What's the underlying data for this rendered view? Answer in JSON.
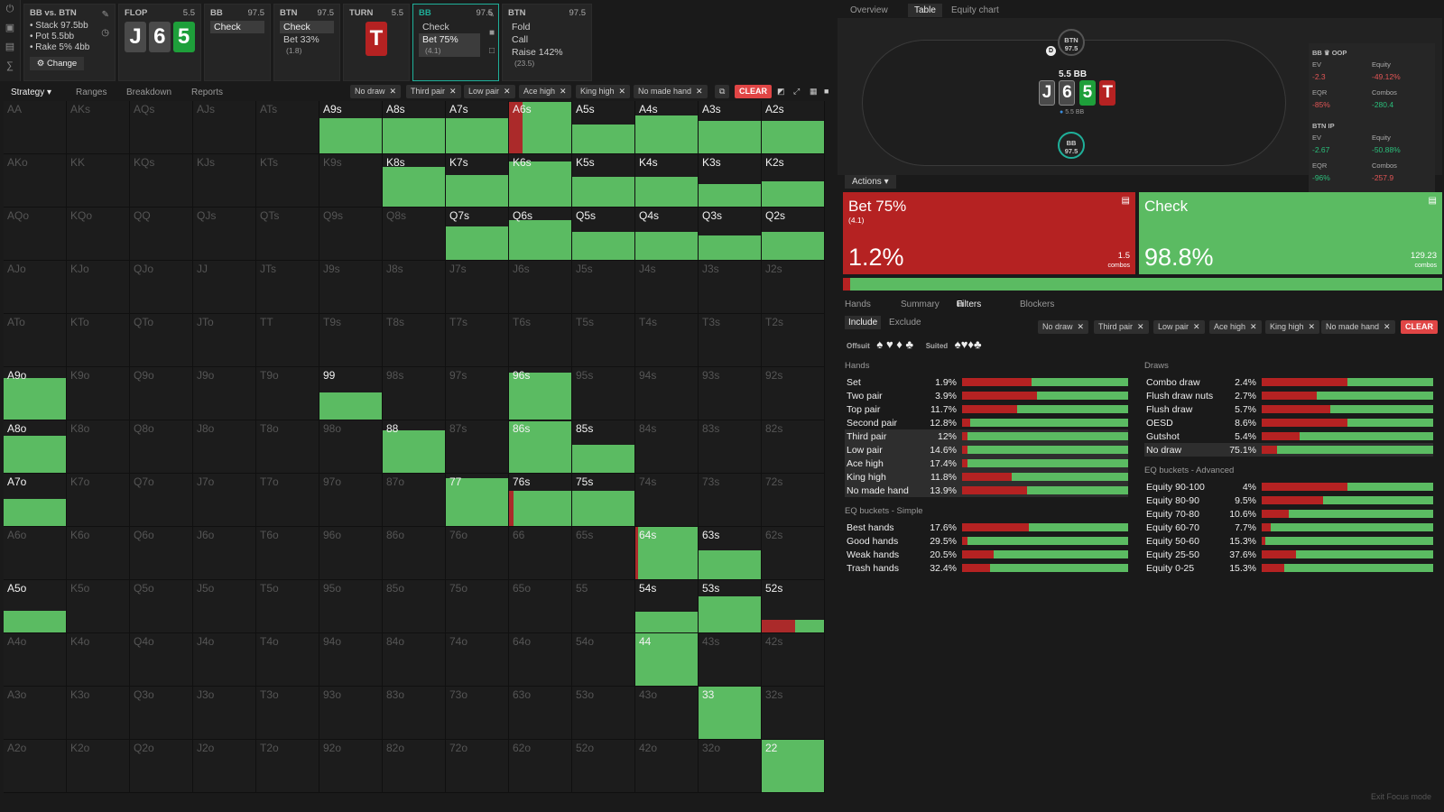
{
  "header": {
    "matchup": "BB vs. BTN",
    "stack": "Stack 97.5bb",
    "pot": "Pot 5.5bb",
    "rake": "Rake 5% 4bb",
    "change_label": "Change"
  },
  "nav": [
    {
      "title": "FLOP",
      "value": "5.5",
      "cards": [
        "J",
        "6",
        "5"
      ]
    },
    {
      "title": "BB",
      "value": "97.5",
      "actions": [
        "Check"
      ]
    },
    {
      "title": "BTN",
      "value": "97.5",
      "actions": [
        "Check",
        "Bet 33%"
      ],
      "sizes": [
        "",
        "(1.8)"
      ]
    },
    {
      "title": "TURN",
      "value": "5.5",
      "cards": [
        "T"
      ]
    },
    {
      "title": "BB",
      "value": "97.5",
      "actions": [
        "Check",
        "Bet 75%"
      ],
      "sizes": [
        "",
        "(4.1)"
      ]
    },
    {
      "title": "BTN",
      "value": "97.5",
      "actions": [
        "Fold",
        "Call",
        "Raise 142%"
      ],
      "sizes": [
        "",
        "",
        "(23.5)"
      ]
    }
  ],
  "tabs": [
    "Strategy",
    "Ranges",
    "Breakdown",
    "Reports"
  ],
  "filter_chips": [
    "No draw",
    "Third pair",
    "Low pair",
    "Ace high",
    "King high",
    "No made hand"
  ],
  "clear_label": "CLEAR",
  "grid": [
    [
      "AA",
      "AKs",
      "AQs",
      "AJs",
      "ATs",
      "A9s",
      "A8s",
      "A7s",
      "A6s",
      "A5s",
      "A4s",
      "A3s",
      "A2s"
    ],
    [
      "AKo",
      "KK",
      "KQs",
      "KJs",
      "KTs",
      "K9s",
      "K8s",
      "K7s",
      "K6s",
      "K5s",
      "K4s",
      "K3s",
      "K2s"
    ],
    [
      "AQo",
      "KQo",
      "QQ",
      "QJs",
      "QTs",
      "Q9s",
      "Q8s",
      "Q7s",
      "Q6s",
      "Q5s",
      "Q4s",
      "Q3s",
      "Q2s"
    ],
    [
      "AJo",
      "KJo",
      "QJo",
      "JJ",
      "JTs",
      "J9s",
      "J8s",
      "J7s",
      "J6s",
      "J5s",
      "J4s",
      "J3s",
      "J2s"
    ],
    [
      "ATo",
      "KTo",
      "QTo",
      "JTo",
      "TT",
      "T9s",
      "T8s",
      "T7s",
      "T6s",
      "T5s",
      "T4s",
      "T3s",
      "T2s"
    ],
    [
      "A9o",
      "K9o",
      "Q9o",
      "J9o",
      "T9o",
      "99",
      "98s",
      "97s",
      "96s",
      "95s",
      "94s",
      "93s",
      "92s"
    ],
    [
      "A8o",
      "K8o",
      "Q8o",
      "J8o",
      "T8o",
      "98o",
      "88",
      "87s",
      "86s",
      "85s",
      "84s",
      "83s",
      "82s"
    ],
    [
      "A7o",
      "K7o",
      "Q7o",
      "J7o",
      "T7o",
      "97o",
      "87o",
      "77",
      "76s",
      "75s",
      "74s",
      "73s",
      "72s"
    ],
    [
      "A6o",
      "K6o",
      "Q6o",
      "J6o",
      "T6o",
      "96o",
      "86o",
      "76o",
      "66",
      "65s",
      "64s",
      "63s",
      "62s"
    ],
    [
      "A5o",
      "K5o",
      "Q5o",
      "J5o",
      "T5o",
      "95o",
      "85o",
      "75o",
      "65o",
      "55",
      "54s",
      "53s",
      "52s"
    ],
    [
      "A4o",
      "K4o",
      "Q4o",
      "J4o",
      "T4o",
      "94o",
      "84o",
      "74o",
      "64o",
      "54o",
      "44",
      "43s",
      "42s"
    ],
    [
      "A3o",
      "K3o",
      "Q3o",
      "J3o",
      "T3o",
      "93o",
      "83o",
      "73o",
      "63o",
      "53o",
      "43o",
      "33",
      "32s"
    ],
    [
      "A2o",
      "K2o",
      "Q2o",
      "J2o",
      "T2o",
      "92o",
      "82o",
      "72o",
      "62o",
      "52o",
      "42o",
      "32o",
      "22"
    ]
  ],
  "grid_freq": {
    "A9s": {
      "range": 0.68,
      "bet": 0.0
    },
    "A8s": {
      "range": 0.68,
      "bet": 0.0
    },
    "A7s": {
      "range": 0.68,
      "bet": 0.0
    },
    "A6s": {
      "range": 0.98,
      "bet": 0.22
    },
    "A5s": {
      "range": 0.55,
      "bet": 0.0
    },
    "A4s": {
      "range": 0.72,
      "bet": 0.0
    },
    "A3s": {
      "range": 0.62,
      "bet": 0.0
    },
    "A2s": {
      "range": 0.62,
      "bet": 0.0
    },
    "K8s": {
      "range": 0.76,
      "bet": 0.0
    },
    "K7s": {
      "range": 0.61,
      "bet": 0.0
    },
    "K6s": {
      "range": 0.87,
      "bet": 0.0
    },
    "K5s": {
      "range": 0.57,
      "bet": 0.0
    },
    "K4s": {
      "range": 0.57,
      "bet": 0.0
    },
    "K3s": {
      "range": 0.43,
      "bet": 0.0
    },
    "K2s": {
      "range": 0.48,
      "bet": 0.0
    },
    "Q7s": {
      "range": 0.64,
      "bet": 0.0
    },
    "Q6s": {
      "range": 0.76,
      "bet": 0.0
    },
    "Q5s": {
      "range": 0.53,
      "bet": 0.0
    },
    "Q4s": {
      "range": 0.53,
      "bet": 0.0
    },
    "Q3s": {
      "range": 0.47,
      "bet": 0.0
    },
    "Q2s": {
      "range": 0.53,
      "bet": 0.0
    },
    "A9o": {
      "range": 0.8,
      "bet": 0.0
    },
    "99": {
      "range": 0.52,
      "bet": 0.0
    },
    "96s": {
      "range": 0.9,
      "bet": 0.0
    },
    "A8o": {
      "range": 0.71,
      "bet": 0.0
    },
    "88": {
      "range": 0.81,
      "bet": 0.0
    },
    "86s": {
      "range": 0.98,
      "bet": 0.0
    },
    "85s": {
      "range": 0.53,
      "bet": 0.0
    },
    "A7o": {
      "range": 0.52,
      "bet": 0.0
    },
    "77": {
      "range": 0.92,
      "bet": 0.0
    },
    "76s": {
      "range": 0.67,
      "bet": 0.07
    },
    "75s": {
      "range": 0.67,
      "bet": 0.0
    },
    "64s": {
      "range": 1.0,
      "bet": 0.05
    },
    "63s": {
      "range": 0.55,
      "bet": 0.0
    },
    "A5o": {
      "range": 0.41,
      "bet": 0.0
    },
    "54s": {
      "range": 0.4,
      "bet": 0.0
    },
    "53s": {
      "range": 0.69,
      "bet": 0.0
    },
    "52s": {
      "range": 0.25,
      "bet": 0.53
    },
    "44": {
      "range": 1.0,
      "bet": 0.0
    },
    "33": {
      "range": 1.0,
      "bet": 0.0
    },
    "22": {
      "range": 1.0,
      "bet": 0.0
    }
  },
  "right": {
    "tabs": [
      "Overview",
      "Table",
      "Equity chart"
    ],
    "btn_seat": {
      "name": "BTN",
      "stack": "97.5"
    },
    "bb_seat": {
      "name": "BB",
      "stack": "97.5"
    },
    "pot": "5.5 BB",
    "pot_chip": "5.5 BB",
    "board": [
      "J",
      "6",
      "5",
      "T"
    ],
    "stats": [
      {
        "title": "BB ♛ OOP",
        "ev": "-2.3",
        "equity": "-49.12%",
        "eqr": "-85%",
        "combos": "-280.4",
        "ev_color": "#e05555",
        "equity_color": "#e05555",
        "eqr_color": "#e05555",
        "combos_color": "#2bbf7b"
      },
      {
        "title": "BTN IP",
        "ev": "-2.67",
        "equity": "-50.88%",
        "eqr": "-96%",
        "combos": "-257.9",
        "ev_color": "#2bbf7b",
        "equity_color": "#2bbf7b",
        "eqr_color": "#2bbf7b",
        "combos_color": "#e05555"
      }
    ],
    "stat_labels": {
      "ev": "EV",
      "equity": "Equity",
      "eqr": "EQR",
      "combos": "Combos"
    },
    "actions_label": "Actions",
    "bet": {
      "name": "Bet 75%",
      "size": "(4.1)",
      "pct": "1.2%",
      "combos": "1.5",
      "combos_label": "combos",
      "freq": 0.012
    },
    "check": {
      "name": "Check",
      "pct": "98.8%",
      "combos": "129.23",
      "combos_label": "combos"
    },
    "subtabs": [
      "Hands",
      "Summary",
      "Filters",
      "Blockers"
    ],
    "include": "Include",
    "exclude": "Exclude",
    "offsuit_label": "Offsuit",
    "suited_label": "Suited",
    "hands_title": "Hands",
    "hands": [
      {
        "n": "Set",
        "v": "1.9%",
        "bet": 0.42,
        "hl": false
      },
      {
        "n": "Two pair",
        "v": "3.9%",
        "bet": 0.45,
        "hl": false
      },
      {
        "n": "Top pair",
        "v": "11.7%",
        "bet": 0.33,
        "hl": false
      },
      {
        "n": "Second pair",
        "v": "12.8%",
        "bet": 0.05,
        "hl": false
      },
      {
        "n": "Third pair",
        "v": "12%",
        "bet": 0.03,
        "hl": true
      },
      {
        "n": "Low pair",
        "v": "14.6%",
        "bet": 0.03,
        "hl": true
      },
      {
        "n": "Ace high",
        "v": "17.4%",
        "bet": 0.03,
        "hl": true
      },
      {
        "n": "King high",
        "v": "11.8%",
        "bet": 0.3,
        "hl": true
      },
      {
        "n": "No made hand",
        "v": "13.9%",
        "bet": 0.39,
        "hl": true
      }
    ],
    "eq_simple_title": "EQ buckets - Simple",
    "eq_simple": [
      {
        "n": "Best hands",
        "v": "17.6%",
        "bet": 0.4
      },
      {
        "n": "Good hands",
        "v": "29.5%",
        "bet": 0.03
      },
      {
        "n": "Weak hands",
        "v": "20.5%",
        "bet": 0.19
      },
      {
        "n": "Trash hands",
        "v": "32.4%",
        "bet": 0.17
      }
    ],
    "draws_title": "Draws",
    "draws": [
      {
        "n": "Combo draw",
        "v": "2.4%",
        "bet": 0.5,
        "hl": false
      },
      {
        "n": "Flush draw nuts",
        "v": "2.7%",
        "bet": 0.32,
        "hl": false
      },
      {
        "n": "Flush draw",
        "v": "5.7%",
        "bet": 0.4,
        "hl": false
      },
      {
        "n": "OESD",
        "v": "8.6%",
        "bet": 0.5,
        "hl": false
      },
      {
        "n": "Gutshot",
        "v": "5.4%",
        "bet": 0.22,
        "hl": false
      },
      {
        "n": "No draw",
        "v": "75.1%",
        "bet": 0.09,
        "hl": true
      }
    ],
    "eq_adv_title": "EQ buckets - Advanced",
    "eq_adv": [
      {
        "n": "Equity 90-100",
        "v": "4%",
        "bet": 0.5
      },
      {
        "n": "Equity 80-90",
        "v": "9.5%",
        "bet": 0.36
      },
      {
        "n": "Equity 70-80",
        "v": "10.6%",
        "bet": 0.16
      },
      {
        "n": "Equity 60-70",
        "v": "7.7%",
        "bet": 0.05
      },
      {
        "n": "Equity 50-60",
        "v": "15.3%",
        "bet": 0.02
      },
      {
        "n": "Equity 25-50",
        "v": "37.6%",
        "bet": 0.2
      },
      {
        "n": "Equity 0-25",
        "v": "15.3%",
        "bet": 0.13
      }
    ],
    "exit_focus": "Exit Focus mode"
  }
}
